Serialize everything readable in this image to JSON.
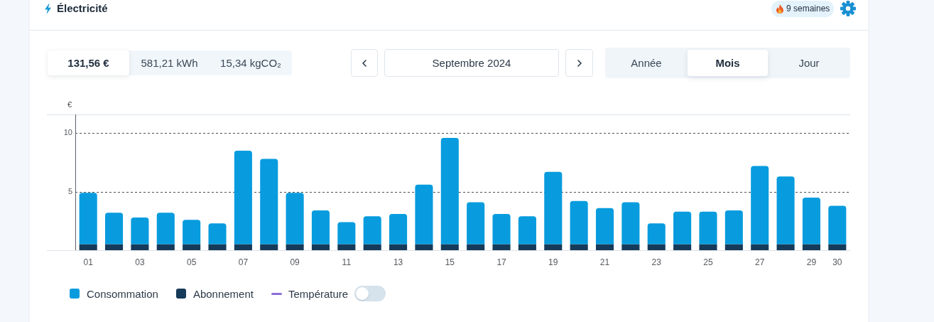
{
  "chart_data": {
    "type": "bar",
    "title": "Électricité",
    "subtitle": "Septembre 2024",
    "ylabel": "€",
    "annotations": [
      "9 semaines",
      "131,56 €",
      "581,21 kWh",
      "15,34 kgCO₂",
      "Année",
      "Mois",
      "Jour"
    ],
    "categories": [
      "01",
      null,
      "03",
      null,
      "05",
      null,
      "07",
      null,
      "09",
      null,
      "11",
      null,
      "13",
      null,
      "15",
      null,
      "17",
      null,
      "19",
      null,
      "21",
      null,
      "23",
      null,
      "25",
      null,
      "27",
      null,
      "29",
      "30"
    ],
    "series": [
      {
        "name": "Abonnement",
        "color": "#163a59",
        "values": [
          0.5,
          0.5,
          0.5,
          0.5,
          0.5,
          0.5,
          0.5,
          0.5,
          0.5,
          0.5,
          0.5,
          0.5,
          0.5,
          0.5,
          0.5,
          0.5,
          0.5,
          0.5,
          0.5,
          0.5,
          0.5,
          0.5,
          0.5,
          0.5,
          0.5,
          0.5,
          0.5,
          0.5,
          0.5,
          0.5
        ]
      },
      {
        "name": "Consommation",
        "color": "#089cde",
        "values": [
          4.4,
          2.7,
          2.3,
          2.7,
          2.1,
          1.8,
          8.0,
          7.3,
          4.4,
          2.9,
          1.9,
          2.4,
          2.6,
          5.1,
          9.1,
          3.6,
          2.6,
          2.4,
          6.2,
          3.7,
          3.1,
          3.6,
          1.8,
          2.8,
          2.8,
          2.9,
          6.7,
          5.8,
          4.0,
          3.3
        ]
      },
      {
        "name": "Température",
        "type": "line",
        "color": "#8c6fd8",
        "values": [
          null,
          null,
          null,
          null,
          null,
          null,
          null,
          null,
          null,
          null,
          null,
          null,
          null,
          null,
          null,
          null,
          null,
          null,
          null,
          null,
          null,
          null,
          null,
          null,
          null,
          null,
          null,
          null,
          null,
          null
        ]
      }
    ],
    "stacked": true,
    "ylim": [
      0,
      11.6
    ],
    "yticks": [
      5,
      10
    ],
    "grid": "y",
    "legend": "bottom left"
  }
}
